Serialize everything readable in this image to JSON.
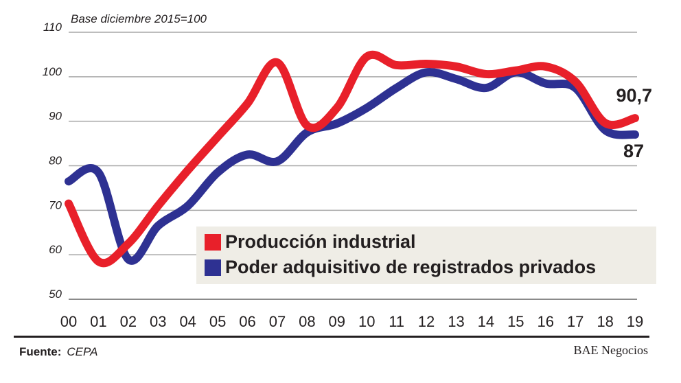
{
  "chart_data": {
    "type": "line",
    "subtitle": "Base diciembre 2015=100",
    "categories": [
      "00",
      "01",
      "02",
      "03",
      "04",
      "05",
      "06",
      "07",
      "08",
      "09",
      "10",
      "11",
      "12",
      "13",
      "14",
      "15",
      "16",
      "17",
      "18",
      "19"
    ],
    "ylim": [
      50,
      110
    ],
    "yticks": [
      "50",
      "60",
      "70",
      "80",
      "90",
      "100",
      "110"
    ],
    "grid": true,
    "legend_position": "bottom-right",
    "series": [
      {
        "name": "Producción industrial",
        "color": "#e8202a",
        "values": [
          71.5,
          58.5,
          62.5,
          71,
          79,
          86.5,
          94,
          103.2,
          89,
          93,
          104.5,
          102.6,
          102.9,
          102.3,
          100.6,
          101.4,
          102.3,
          98.9,
          89.6,
          90.7
        ],
        "end_label": "90,7"
      },
      {
        "name": "Poder adquisitivo de registrados privados",
        "color": "#2e3192",
        "values": [
          76.5,
          78.5,
          59,
          66.5,
          71,
          78.5,
          82.5,
          81,
          87.5,
          89.5,
          93,
          97.5,
          101,
          99.5,
          97.5,
          101,
          98.5,
          97.5,
          88,
          87
        ],
        "end_label": "87"
      }
    ]
  },
  "footer": {
    "source_label": "Fuente:",
    "source_value": "CEPA",
    "brand": "BAE Negocios"
  }
}
